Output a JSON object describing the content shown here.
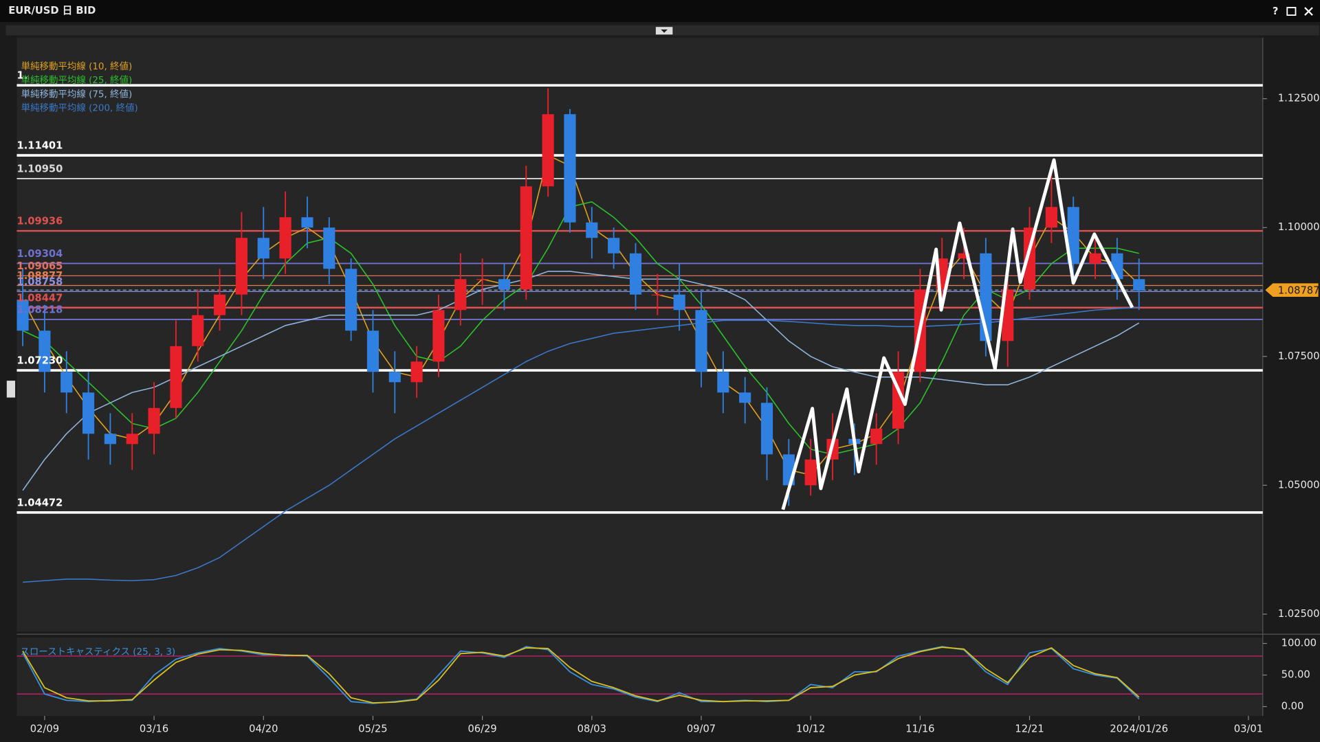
{
  "window": {
    "help": "?"
  },
  "chart_data": [
    {
      "type": "candlestick",
      "title": "EUR/USD 日 BID",
      "up_color": "#e8202a",
      "down_color": "#2f80e0",
      "open": [
        1.086,
        1.08,
        1.072,
        1.068,
        1.06,
        1.058,
        1.06,
        1.065,
        1.077,
        1.083,
        1.087,
        1.098,
        1.094,
        1.102,
        1.1,
        1.092,
        1.08,
        1.072,
        1.07,
        1.074,
        1.084,
        1.09,
        1.09,
        1.088,
        1.108,
        1.122,
        1.101,
        1.098,
        1.095,
        1.087,
        1.087,
        1.084,
        1.072,
        1.068,
        1.066,
        1.056,
        1.05,
        1.055,
        1.059,
        1.058,
        1.061,
        1.072,
        1.088,
        1.094,
        1.095,
        1.078,
        1.088,
        1.1,
        1.104,
        1.093,
        1.095,
        1.09,
        null,
        null,
        null,
        null,
        null
      ],
      "high": [
        1.092,
        1.085,
        1.076,
        1.072,
        1.064,
        1.064,
        1.07,
        1.082,
        1.088,
        1.092,
        1.103,
        1.104,
        1.107,
        1.106,
        1.102,
        1.094,
        1.084,
        1.076,
        1.077,
        1.087,
        1.095,
        1.094,
        1.093,
        1.112,
        1.127,
        1.123,
        1.104,
        1.1,
        1.097,
        1.091,
        1.093,
        1.088,
        1.076,
        1.071,
        1.069,
        1.059,
        1.059,
        1.064,
        1.062,
        1.064,
        1.076,
        1.092,
        1.098,
        1.1,
        1.098,
        1.092,
        1.104,
        1.112,
        1.106,
        1.098,
        1.098,
        1.094,
        null,
        null,
        null,
        null,
        null
      ],
      "low": [
        1.077,
        1.068,
        1.064,
        1.055,
        1.054,
        1.053,
        1.056,
        1.063,
        1.074,
        1.08,
        1.083,
        1.09,
        1.091,
        1.096,
        1.089,
        1.078,
        1.068,
        1.064,
        1.067,
        1.071,
        1.081,
        1.085,
        1.084,
        1.086,
        1.106,
        1.099,
        1.094,
        1.092,
        1.084,
        1.083,
        1.08,
        1.069,
        1.064,
        1.062,
        1.051,
        1.046,
        1.048,
        1.051,
        1.052,
        1.054,
        1.058,
        1.07,
        1.084,
        1.09,
        1.075,
        1.073,
        1.086,
        1.097,
        1.09,
        1.09,
        1.086,
        1.084,
        null,
        null,
        null,
        null,
        null
      ],
      "close": [
        1.08,
        1.072,
        1.068,
        1.06,
        1.058,
        1.06,
        1.065,
        1.077,
        1.083,
        1.087,
        1.098,
        1.094,
        1.102,
        1.1,
        1.092,
        1.08,
        1.072,
        1.07,
        1.074,
        1.084,
        1.09,
        1.09,
        1.088,
        1.108,
        1.122,
        1.101,
        1.098,
        1.095,
        1.087,
        1.087,
        1.084,
        1.072,
        1.068,
        1.066,
        1.056,
        1.05,
        1.055,
        1.059,
        1.058,
        1.061,
        1.072,
        1.088,
        1.094,
        1.095,
        1.078,
        1.088,
        1.1,
        1.104,
        1.093,
        1.095,
        1.09,
        1.0878,
        null,
        null,
        null,
        null,
        null
      ],
      "series": [
        {
          "name": "単純移動平均線 (10, 終値)",
          "color": "#e0a020",
          "values": [
            1.086,
            1.078,
            1.071,
            1.065,
            1.06,
            1.059,
            1.062,
            1.068,
            1.076,
            1.083,
            1.09,
            1.095,
            1.098,
            1.1,
            1.097,
            1.088,
            1.078,
            1.072,
            1.071,
            1.078,
            1.086,
            1.09,
            1.089,
            1.097,
            1.114,
            1.112,
            1.1,
            1.097,
            1.091,
            1.087,
            1.086,
            1.078,
            1.07,
            1.067,
            1.061,
            1.053,
            1.052,
            1.057,
            1.058,
            1.06,
            1.066,
            1.079,
            1.09,
            1.095,
            1.087,
            1.083,
            1.094,
            1.102,
            1.099,
            1.094,
            1.093,
            1.089,
            null,
            null,
            null,
            null,
            null
          ]
        },
        {
          "name": "単純移動平均線 (25, 終値)",
          "color": "#2cc02c",
          "values": [
            1.08,
            1.078,
            1.074,
            1.07,
            1.066,
            1.062,
            1.061,
            1.063,
            1.068,
            1.074,
            1.08,
            1.087,
            1.093,
            1.097,
            1.098,
            1.095,
            1.089,
            1.081,
            1.075,
            1.074,
            1.077,
            1.082,
            1.086,
            1.089,
            1.096,
            1.104,
            1.105,
            1.102,
            1.098,
            1.093,
            1.09,
            1.085,
            1.079,
            1.073,
            1.068,
            1.062,
            1.057,
            1.056,
            1.057,
            1.058,
            1.061,
            1.066,
            1.074,
            1.083,
            1.088,
            1.086,
            1.088,
            1.093,
            1.096,
            1.096,
            1.096,
            1.095,
            null,
            null,
            null,
            null,
            null
          ]
        },
        {
          "name": "単純移動平均線 (75, 終値)",
          "color": "#8fb4dc",
          "values": [
            1.049,
            1.055,
            1.06,
            1.064,
            1.066,
            1.068,
            1.069,
            1.071,
            1.073,
            1.075,
            1.077,
            1.079,
            1.081,
            1.082,
            1.083,
            1.083,
            1.083,
            1.083,
            1.083,
            1.084,
            1.086,
            1.088,
            1.089,
            1.09,
            1.0915,
            1.0915,
            1.091,
            1.0905,
            1.09,
            1.09,
            1.09,
            1.089,
            1.088,
            1.086,
            1.082,
            1.078,
            1.075,
            1.073,
            1.072,
            1.071,
            1.071,
            1.071,
            1.0705,
            1.07,
            1.0695,
            1.0695,
            1.071,
            1.073,
            1.075,
            1.077,
            1.079,
            1.0815,
            null,
            null,
            null,
            null,
            null
          ]
        },
        {
          "name": "単純移動平均線 (200, 終値)",
          "color": "#3a78c8",
          "values": [
            1.0312,
            1.0315,
            1.0318,
            1.0318,
            1.0316,
            1.0315,
            1.0317,
            1.0325,
            1.034,
            1.036,
            1.039,
            1.042,
            1.045,
            1.0475,
            1.05,
            1.053,
            1.056,
            1.059,
            1.0615,
            1.064,
            1.0665,
            1.069,
            1.0715,
            1.074,
            1.076,
            1.0775,
            1.0785,
            1.0795,
            1.08,
            1.0805,
            1.081,
            1.0815,
            1.082,
            1.082,
            1.082,
            1.0818,
            1.0815,
            1.0812,
            1.081,
            1.081,
            1.0808,
            1.0808,
            1.081,
            1.0812,
            1.0815,
            1.082,
            1.0825,
            1.083,
            1.0835,
            1.084,
            1.0843,
            1.0845,
            null,
            null,
            null,
            null,
            null
          ]
        }
      ],
      "levels": [
        {
          "value": 1.1276,
          "label": "1.",
          "color": "#ffffff",
          "width": 3
        },
        {
          "value": 1.11401,
          "color": "#ffffff",
          "width": 3
        },
        {
          "value": 1.1095,
          "label": "1.10950",
          "color": "#d8d8d8",
          "width": 1.5
        },
        {
          "value": 1.09936,
          "color": "#e05050",
          "width": 2
        },
        {
          "value": 1.09304,
          "color": "#7070d0",
          "width": 1.5
        },
        {
          "value": 1.09065,
          "color": "#e07060",
          "width": 1
        },
        {
          "value": 1.08877,
          "color": "#e08050",
          "width": 1
        },
        {
          "value": 1.08758,
          "color": "#9090e0",
          "width": 1
        },
        {
          "value": 1.08447,
          "color": "#e05050",
          "width": 2
        },
        {
          "value": 1.08218,
          "color": "#7070d0",
          "width": 1.5
        },
        {
          "value": 1.0723,
          "label": "1.07230",
          "color": "#ffffff",
          "width": 3
        },
        {
          "value": 1.04472,
          "color": "#ffffff",
          "width": 3
        }
      ],
      "last_price": 1.08787,
      "ylim": [
        1.0216,
        1.1368
      ],
      "yticks": [
        {
          "value": 1.125,
          "label": "1.12500"
        },
        {
          "value": 1.1,
          "label": "1.10000"
        },
        {
          "value": 1.075,
          "label": "1.07500"
        },
        {
          "value": 1.05,
          "label": "1.05000"
        },
        {
          "value": 1.025,
          "label": "1.02500"
        }
      ]
    },
    {
      "type": "line",
      "title": "スローストキャスティクス (25, 3, 3)",
      "categories": [
        null,
        "02/09",
        null,
        null,
        null,
        null,
        "03/16",
        null,
        null,
        null,
        null,
        "04/20",
        null,
        null,
        null,
        null,
        "05/25",
        null,
        null,
        null,
        null,
        "06/29",
        null,
        null,
        null,
        null,
        "08/03",
        null,
        null,
        null,
        null,
        "09/07",
        null,
        null,
        null,
        null,
        "10/12",
        null,
        null,
        null,
        null,
        "11/16",
        null,
        null,
        null,
        null,
        "12/21",
        null,
        null,
        null,
        null,
        "2024/01/26",
        null,
        null,
        null,
        null,
        "03/01"
      ],
      "series": [
        {
          "color": "#3a90dc",
          "values": [
            85,
            20,
            10,
            8,
            10,
            10,
            50,
            75,
            85,
            92,
            88,
            82,
            82,
            80,
            45,
            8,
            5,
            8,
            12,
            50,
            88,
            85,
            78,
            95,
            90,
            55,
            35,
            28,
            15,
            8,
            22,
            8,
            8,
            10,
            8,
            10,
            35,
            30,
            55,
            55,
            80,
            88,
            95,
            90,
            55,
            35,
            85,
            92,
            60,
            50,
            45,
            12,
            null,
            null,
            null,
            null,
            null
          ]
        },
        {
          "color": "#d8c020",
          "values": [
            88,
            30,
            14,
            9,
            9,
            11,
            42,
            70,
            83,
            90,
            89,
            84,
            81,
            81,
            52,
            14,
            6,
            7,
            11,
            42,
            84,
            86,
            80,
            93,
            92,
            62,
            40,
            30,
            17,
            9,
            18,
            10,
            8,
            9,
            9,
            10,
            30,
            32,
            50,
            56,
            76,
            87,
            94,
            91,
            60,
            38,
            78,
            93,
            65,
            52,
            46,
            15,
            null,
            null,
            null,
            null,
            null
          ]
        }
      ],
      "hlines": [
        80,
        20
      ],
      "hline_color": "#c0206a",
      "ylim": [
        -14.7,
        109.3
      ],
      "yticks": [
        {
          "value": 100,
          "label": "100.00"
        },
        {
          "value": 50,
          "label": "50.00"
        },
        {
          "value": 0,
          "label": "0.00"
        }
      ]
    }
  ]
}
